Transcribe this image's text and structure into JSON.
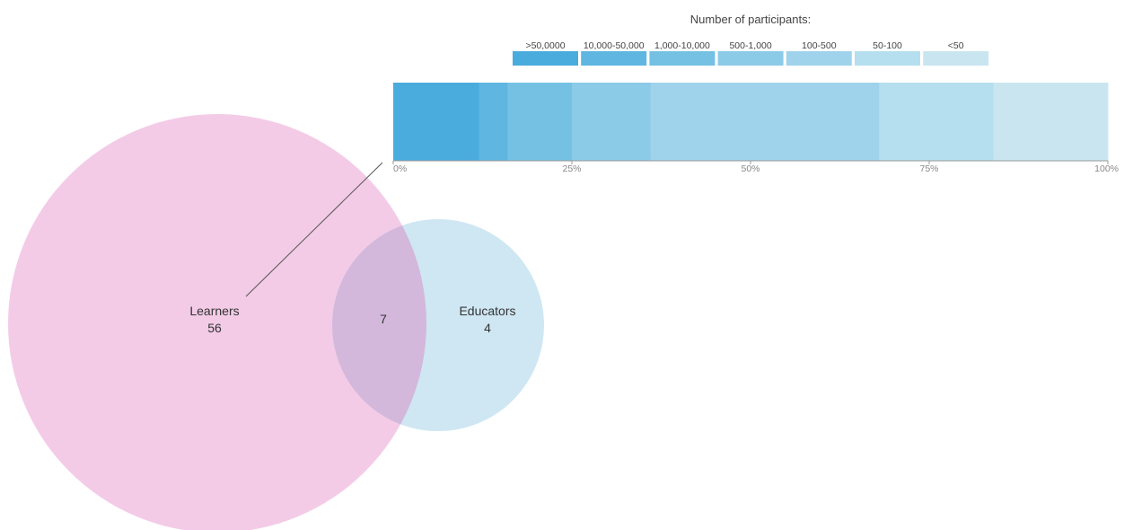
{
  "chart_data": [
    {
      "type": "bar",
      "orientation": "horizontal-stacked-100",
      "legend_title": "Number of participants:",
      "legend_placement": "top",
      "categories": [
        ">50,0000",
        "10,000-50,000",
        "1,000-10,000",
        "500-1,000",
        "100-500",
        "50-100",
        "<50"
      ],
      "values_percent": [
        12,
        4,
        9,
        11,
        32,
        16,
        16
      ],
      "colors": [
        "#4aacdc",
        "#5eb6e1",
        "#74c1e4",
        "#8bcbe7",
        "#9fd3ec",
        "#b5dfee",
        "#c9e6f0"
      ],
      "x_ticks": [
        "0%",
        "25%",
        "50%",
        "75%",
        "100%"
      ],
      "xlim": [
        0,
        100
      ]
    },
    {
      "type": "venn",
      "sets": [
        {
          "name": "Learners",
          "value": 56,
          "color": "#f0bfe2"
        },
        {
          "name": "Educators",
          "value": 4,
          "color": "#c4e2f0"
        }
      ],
      "intersection": {
        "value": 7,
        "color": "#d3b8dc"
      }
    }
  ]
}
